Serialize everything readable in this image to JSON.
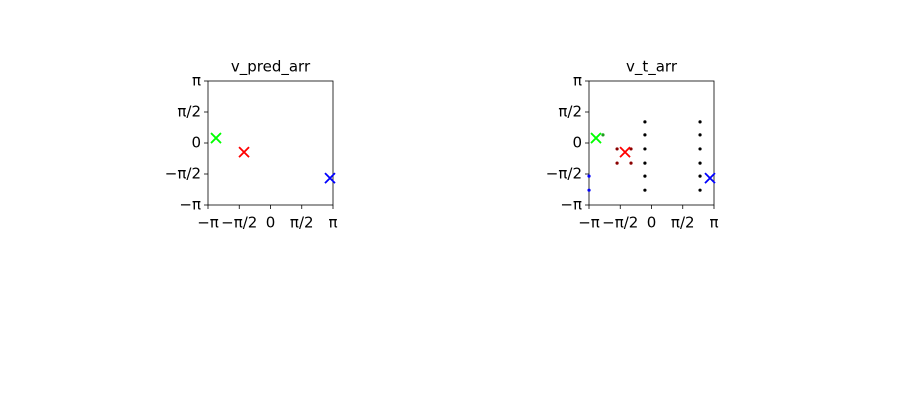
{
  "chart_data": [
    {
      "type": "scatter",
      "title": "v_pred_arr",
      "xlim": [
        -3.14159,
        3.14159
      ],
      "ylim": [
        -3.14159,
        3.14159
      ],
      "xticks": [
        {
          "value": -3.14159,
          "label": "−π"
        },
        {
          "value": -1.5708,
          "label": "−π/2"
        },
        0,
        {
          "value": 1.5708,
          "label": "π/2"
        },
        {
          "value": 3.14159,
          "label": "π"
        }
      ],
      "yticks": [
        {
          "value": -3.14159,
          "label": "−π"
        },
        {
          "value": -1.5708,
          "label": "−π/2"
        },
        0,
        {
          "value": 1.5708,
          "label": "π/2"
        },
        {
          "value": 3.14159,
          "label": "π"
        }
      ],
      "series": [
        {
          "color": "#00ff00",
          "marker": "x",
          "x": [
            -2.74
          ],
          "y": [
            0.25
          ]
        },
        {
          "color": "#ff0000",
          "marker": "x",
          "x": [
            -1.33
          ],
          "y": [
            -0.46
          ]
        },
        {
          "color": "#0000ff",
          "marker": "x",
          "x": [
            2.99
          ],
          "y": [
            -1.78
          ]
        }
      ]
    },
    {
      "type": "scatter",
      "title": "v_t_arr",
      "xlim": [
        -3.14159,
        3.14159
      ],
      "ylim": [
        -3.14159,
        3.14159
      ],
      "xticks": [
        {
          "value": -3.14159,
          "label": "−π"
        },
        {
          "value": -1.5708,
          "label": "−π/2"
        },
        0,
        {
          "value": 1.5708,
          "label": "π/2"
        },
        {
          "value": 3.14159,
          "label": "π"
        }
      ],
      "yticks": [
        {
          "value": -3.14159,
          "label": "−π"
        },
        {
          "value": -1.5708,
          "label": "−π/2"
        },
        0,
        {
          "value": 1.5708,
          "label": "π/2"
        },
        {
          "value": 3.14159,
          "label": "π"
        }
      ],
      "series": [
        {
          "color": "#000000",
          "marker": "o",
          "x": [
            -0.33,
            -0.33,
            -0.33,
            -0.33,
            -0.33,
            -0.33,
            2.44,
            2.44,
            2.44,
            2.44,
            2.44,
            2.44
          ],
          "y": [
            1.07,
            0.41,
            -0.3,
            -1.02,
            -1.68,
            -2.39,
            1.07,
            0.41,
            -0.3,
            -1.02,
            -1.68,
            -2.39
          ]
        },
        {
          "color": "#8b0000",
          "marker": "o",
          "x": [
            -1.73,
            -1.03,
            -1.73,
            -1.03
          ],
          "y": [
            -0.3,
            -0.3,
            -1.02,
            -1.02
          ]
        },
        {
          "color": "#1e9e1e",
          "marker": "o",
          "x": [
            -2.44
          ],
          "y": [
            0.41
          ]
        },
        {
          "color": "#0000ff",
          "marker": "o",
          "x": [
            -3.14,
            -3.14
          ],
          "y": [
            -1.68,
            -2.39
          ]
        },
        {
          "color": "#00ff00",
          "marker": "x",
          "x": [
            -2.79
          ],
          "y": [
            0.25
          ]
        },
        {
          "color": "#ff0000",
          "marker": "x",
          "x": [
            -1.33
          ],
          "y": [
            -0.46
          ]
        },
        {
          "color": "#0000ff",
          "marker": "x",
          "x": [
            2.94
          ],
          "y": [
            -1.78
          ]
        }
      ]
    }
  ]
}
